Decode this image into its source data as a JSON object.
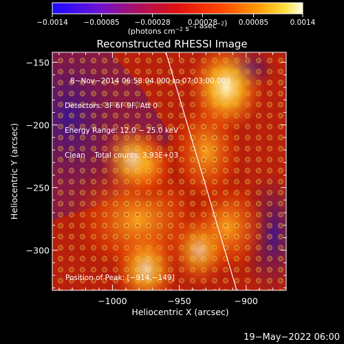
{
  "chart_data": {
    "type": "heatmap",
    "title": "Reconstructed RHESSI Image",
    "xlabel": "Heliocentric X (arcsec)",
    "ylabel": "Heliocentric Y (arcsec)",
    "xlim": [
      -1045,
      -870
    ],
    "ylim": [
      -332,
      -142
    ],
    "x_ticks": [
      {
        "value": -1000,
        "label": "−1000"
      },
      {
        "value": -950,
        "label": "−950"
      },
      {
        "value": -900,
        "label": "−900"
      }
    ],
    "y_ticks": [
      {
        "value": -150,
        "label": "−150"
      },
      {
        "value": -200,
        "label": "−200"
      },
      {
        "value": -250,
        "label": "−250"
      },
      {
        "value": -300,
        "label": "−300"
      }
    ],
    "colorbar": {
      "min": -0.0014,
      "max": 0.0014,
      "tick_values": [
        -0.0014,
        -0.00085,
        -0.00028,
        0.00028,
        0.00085,
        0.0014
      ],
      "tick_labels": [
        "−0.0014",
        "−0.00085",
        "−0.00028",
        "0.00028",
        "0.00085",
        "0.0014"
      ],
      "label_prefix": "(photons cm",
      "label_sup1": "−2",
      "label_mid": " s",
      "label_sup2": "−1",
      "label_mid2": " asec",
      "label_sup3": "−2",
      "label_suffix": ")"
    },
    "annotation_lines": [
      "8−Nov−2014 06:58:04.000 to 07:03:00.000",
      "Detectors: 3F 6F 9F, Att 0",
      "Energy Range: 12.0 − 25.0 keV",
      "Clean    Total counts: 3.93E+03"
    ],
    "peak_label": "Position of Peak: [−914,−149]",
    "limb_line": {
      "x": [
        -960,
        -907
      ],
      "y": [
        -142,
        -332
      ]
    },
    "bright_regions": [
      {
        "x": -915,
        "y": -170,
        "level": 0.95
      },
      {
        "x": -985,
        "y": -228,
        "level": 0.7
      },
      {
        "x": -975,
        "y": -315,
        "level": 0.75
      },
      {
        "x": -935,
        "y": -300,
        "level": 0.65
      }
    ]
  },
  "footer": {
    "timestamp": "19−May−2022 06:00"
  }
}
